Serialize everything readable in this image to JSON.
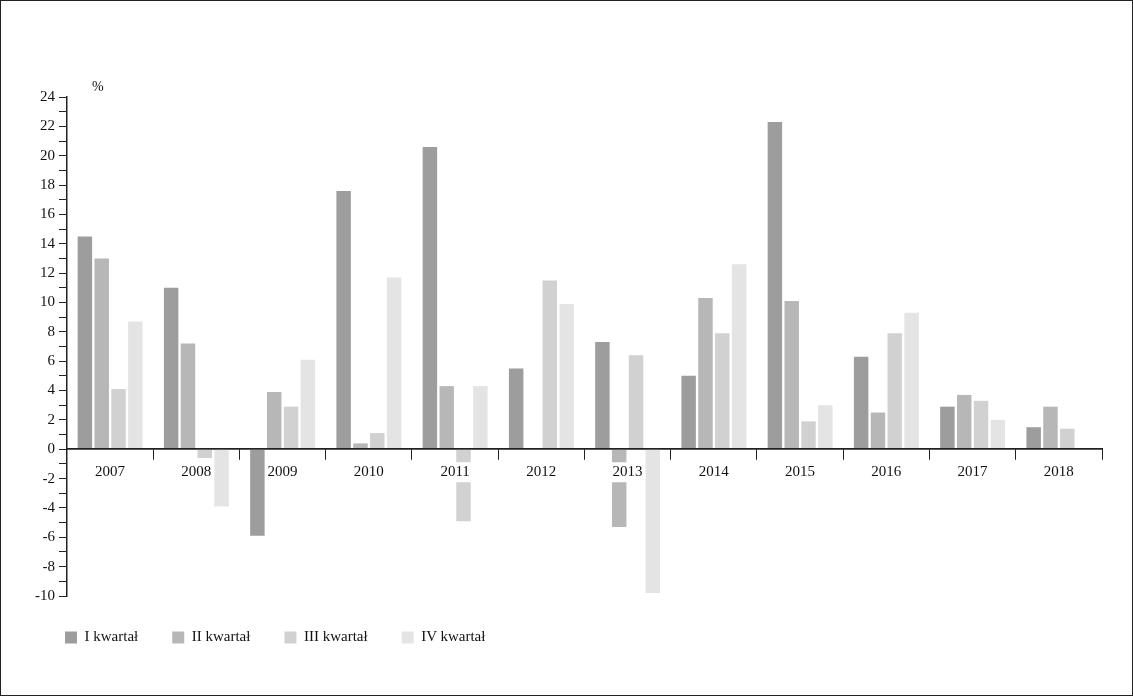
{
  "chart_data": {
    "type": "bar",
    "ylabel": "%",
    "categories": [
      "2007",
      "2008",
      "2009",
      "2010",
      "2011",
      "2012",
      "2013",
      "2014",
      "2015",
      "2016",
      "2017",
      "2018"
    ],
    "series": [
      {
        "name": "I kwartał",
        "color": "#9d9d9d",
        "values": [
          14.5,
          11.0,
          -5.9,
          17.6,
          20.6,
          5.5,
          7.3,
          5.0,
          22.3,
          6.3,
          2.9,
          1.5
        ]
      },
      {
        "name": "II kwartał",
        "color": "#b7b7b7",
        "values": [
          13.0,
          7.2,
          3.9,
          0.4,
          4.3,
          null,
          -5.3,
          10.3,
          10.1,
          2.5,
          3.7,
          2.9
        ]
      },
      {
        "name": "III kwartał",
        "color": "#d1d1d1",
        "values": [
          4.1,
          -0.6,
          2.9,
          1.1,
          -4.9,
          11.5,
          6.4,
          7.9,
          1.9,
          7.9,
          3.3,
          1.4
        ]
      },
      {
        "name": "IV kwartał",
        "color": "#e4e4e4",
        "values": [
          8.7,
          -3.9,
          6.1,
          11.7,
          4.3,
          9.9,
          -9.8,
          12.6,
          3.0,
          9.3,
          2.0,
          null
        ]
      }
    ],
    "ylim": [
      -10,
      24
    ],
    "yticks": [
      -10,
      {
        "value": -9,
        "label": null
      },
      -8,
      {
        "value": -7,
        "label": null
      },
      -6,
      {
        "value": -5,
        "label": null
      },
      -4,
      {
        "value": -3,
        "label": null
      },
      -2,
      {
        "value": -1,
        "label": null
      },
      0,
      {
        "value": 1,
        "label": null
      },
      2,
      {
        "value": 3,
        "label": null
      },
      4,
      {
        "value": 5,
        "label": null
      },
      6,
      {
        "value": 7,
        "label": null
      },
      8,
      {
        "value": 9,
        "label": null
      },
      10,
      {
        "value": 11,
        "label": null
      },
      12,
      {
        "value": 13,
        "label": null
      },
      14,
      {
        "value": 15,
        "label": null
      },
      16,
      {
        "value": 17,
        "label": null
      },
      18,
      {
        "value": 19,
        "label": null
      },
      20,
      {
        "value": 21,
        "label": null
      },
      22,
      {
        "value": 23,
        "label": null
      },
      24
    ],
    "grid": false,
    "legend": "bottom left"
  }
}
